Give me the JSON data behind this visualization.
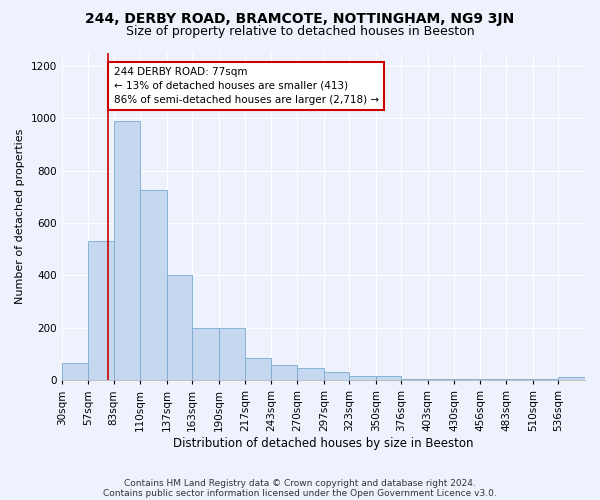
{
  "title1": "244, DERBY ROAD, BRAMCOTE, NOTTINGHAM, NG9 3JN",
  "title2": "Size of property relative to detached houses in Beeston",
  "xlabel": "Distribution of detached houses by size in Beeston",
  "ylabel": "Number of detached properties",
  "bins": [
    30,
    57,
    83,
    110,
    137,
    163,
    190,
    217,
    243,
    270,
    297,
    323,
    350,
    376,
    403,
    430,
    456,
    483,
    510,
    536,
    563
  ],
  "values": [
    65,
    530,
    990,
    725,
    400,
    200,
    200,
    85,
    60,
    45,
    30,
    18,
    18,
    5,
    5,
    5,
    5,
    5,
    5,
    12
  ],
  "bar_color": "#c5d8ef",
  "bar_edge_color": "#7aabcf",
  "vline_x": 77,
  "vline_color": "#cc0000",
  "annotation_text": "244 DERBY ROAD: 77sqm\n← 13% of detached houses are smaller (413)\n86% of semi-detached houses are larger (2,718) →",
  "annotation_box_color": "white",
  "annotation_box_edge_color": "#cc0000",
  "ylim": [
    0,
    1250
  ],
  "yticks": [
    0,
    200,
    400,
    600,
    800,
    1000,
    1200
  ],
  "background_color": "#eef2fc",
  "footer1": "Contains HM Land Registry data © Crown copyright and database right 2024.",
  "footer2": "Contains public sector information licensed under the Open Government Licence v3.0.",
  "title1_fontsize": 10,
  "title2_fontsize": 9,
  "xlabel_fontsize": 8.5,
  "ylabel_fontsize": 8,
  "tick_fontsize": 7.5,
  "annotation_fontsize": 7.5,
  "footer_fontsize": 6.5
}
